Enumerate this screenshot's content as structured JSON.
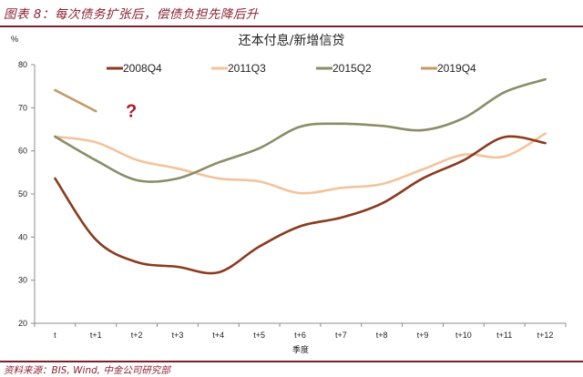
{
  "figure": {
    "title": "图表 8：每次债务扩张后，偿债负担先降后升",
    "source": "资料来源：BIS, Wind, 中金公司研究部"
  },
  "chart_data": {
    "type": "line",
    "title": "还本付息/新增信贷",
    "xlabel": "季度",
    "ylabel": "%",
    "ylim": [
      20,
      80
    ],
    "yticks": [
      20,
      30,
      40,
      50,
      60,
      70,
      80
    ],
    "grid": false,
    "legend_position": "top",
    "categories": [
      "t",
      "t+1",
      "t+2",
      "t+3",
      "t+4",
      "t+5",
      "t+6",
      "t+7",
      "t+8",
      "t+9",
      "t+10",
      "t+11",
      "t+12"
    ],
    "series": [
      {
        "name": "2008Q4",
        "color": "#8b3a1e",
        "values": [
          53.6,
          39.4,
          34.2,
          33.1,
          31.8,
          37.8,
          42.5,
          44.5,
          47.8,
          53.6,
          57.8,
          63.2,
          61.8
        ]
      },
      {
        "name": "2011Q3",
        "color": "#f2c39a",
        "values": [
          63.3,
          62.0,
          57.9,
          55.9,
          53.6,
          52.9,
          50.2,
          51.4,
          52.3,
          55.7,
          59.1,
          58.7,
          64.0
        ]
      },
      {
        "name": "2015Q2",
        "color": "#8a8d66",
        "values": [
          63.3,
          57.8,
          53.2,
          53.6,
          57.3,
          60.6,
          65.6,
          66.3,
          65.8,
          64.8,
          67.6,
          73.6,
          76.6
        ]
      },
      {
        "name": "2019Q4",
        "color": "#c49a66",
        "values": [
          74.1,
          69.2,
          null,
          null,
          null,
          null,
          null,
          null,
          null,
          null,
          null,
          null,
          null
        ]
      }
    ],
    "annotations": [
      {
        "text": "?",
        "x": "t+2",
        "y": 69.5,
        "color": "#b0182a"
      }
    ]
  }
}
